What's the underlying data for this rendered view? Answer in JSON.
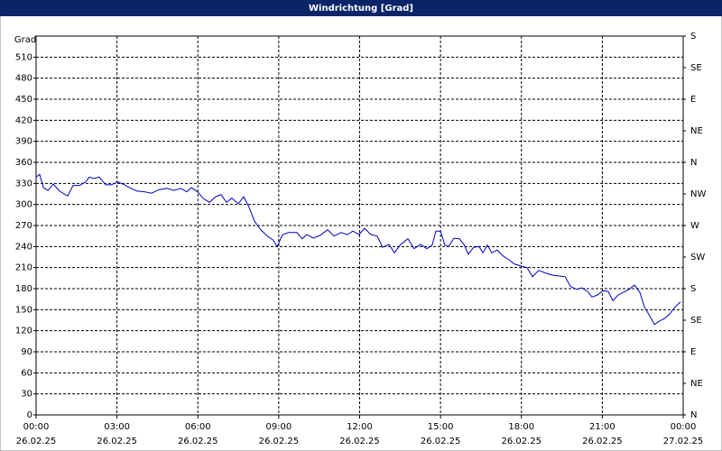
{
  "chart_data": {
    "type": "line",
    "title": "Windrichtung [Grad]",
    "y_label": "Grad",
    "xlim": [
      0,
      24
    ],
    "xticks": [
      {
        "value": 0,
        "label": "00:00"
      },
      {
        "value": 3,
        "label": "03:00"
      },
      {
        "value": 6,
        "label": "06:00"
      },
      {
        "value": 9,
        "label": "09:00"
      },
      {
        "value": 12,
        "label": "12:00"
      },
      {
        "value": 15,
        "label": "15:00"
      },
      {
        "value": 18,
        "label": "18:00"
      },
      {
        "value": 21,
        "label": "21:00"
      },
      {
        "value": 24,
        "label": "00:00"
      }
    ],
    "xtick_dates": [
      "26.02.25",
      "26.02.25",
      "26.02.25",
      "26.02.25",
      "26.02.25",
      "26.02.25",
      "26.02.25",
      "26.02.25",
      "27.02.25"
    ],
    "ylim": [
      0,
      540
    ],
    "yticks": [
      0,
      30,
      60,
      90,
      120,
      150,
      180,
      210,
      240,
      270,
      300,
      330,
      360,
      390,
      420,
      450,
      480,
      510
    ],
    "y2lim": [
      0,
      540
    ],
    "y2ticks": [
      {
        "value": 0,
        "label": "N"
      },
      {
        "value": 45,
        "label": "NE"
      },
      {
        "value": 90,
        "label": "E"
      },
      {
        "value": 135,
        "label": "SE"
      },
      {
        "value": 180,
        "label": "S"
      },
      {
        "value": 225,
        "label": "SW"
      },
      {
        "value": 270,
        "label": "W"
      },
      {
        "value": 315,
        "label": "NW"
      },
      {
        "value": 360,
        "label": "N"
      },
      {
        "value": 405,
        "label": "NE"
      },
      {
        "value": 450,
        "label": "E"
      },
      {
        "value": 495,
        "label": "SE"
      },
      {
        "value": 540,
        "label": "S"
      }
    ],
    "grid": true,
    "x": [
      0,
      0.13,
      0.27,
      0.44,
      0.64,
      0.87,
      1.17,
      1.37,
      1.61,
      1.84,
      1.97,
      2.14,
      2.34,
      2.58,
      2.78,
      3.05,
      3.28,
      3.51,
      3.75,
      4.02,
      4.28,
      4.55,
      4.85,
      5.12,
      5.36,
      5.59,
      5.76,
      5.99,
      6.19,
      6.43,
      6.66,
      6.86,
      7.06,
      7.26,
      7.5,
      7.7,
      7.9,
      8.1,
      8.33,
      8.57,
      8.8,
      8.94,
      9.14,
      9.37,
      9.67,
      9.87,
      10.04,
      10.28,
      10.54,
      10.81,
      11.05,
      11.31,
      11.55,
      11.75,
      11.98,
      12.18,
      12.42,
      12.65,
      12.85,
      13.09,
      13.29,
      13.52,
      13.79,
      14.02,
      14.26,
      14.49,
      14.69,
      14.83,
      15.0,
      15.16,
      15.3,
      15.5,
      15.7,
      15.87,
      16.03,
      16.23,
      16.43,
      16.57,
      16.74,
      16.9,
      17.1,
      17.34,
      17.54,
      17.74,
      18.01,
      18.21,
      18.41,
      18.64,
      18.91,
      19.18,
      19.41,
      19.62,
      19.82,
      20.05,
      20.25,
      20.45,
      20.62,
      20.82,
      21.02,
      21.22,
      21.39,
      21.59,
      21.79,
      21.99,
      22.19,
      22.39,
      22.56,
      22.76,
      22.93,
      23.13,
      23.33,
      23.5,
      23.7,
      23.9
    ],
    "series": [
      {
        "color": "#0000c0",
        "values": [
          339,
          343,
          324,
          320,
          329,
          319,
          312,
          327,
          327,
          332,
          339,
          337,
          339,
          328,
          328,
          332,
          328,
          323,
          319,
          318,
          316,
          321,
          323,
          320,
          323,
          318,
          324,
          318,
          309,
          303,
          311,
          314,
          303,
          309,
          301,
          311,
          296,
          276,
          264,
          255,
          249,
          240,
          257,
          260,
          260,
          251,
          257,
          252,
          256,
          264,
          255,
          260,
          257,
          262,
          257,
          266,
          257,
          255,
          239,
          243,
          231,
          243,
          251,
          237,
          243,
          237,
          242,
          262,
          262,
          242,
          240,
          252,
          251,
          243,
          229,
          239,
          240,
          231,
          242,
          231,
          235,
          226,
          221,
          215,
          212,
          210,
          197,
          206,
          202,
          199,
          198,
          197,
          183,
          179,
          181,
          176,
          168,
          171,
          177,
          176,
          163,
          171,
          175,
          179,
          185,
          175,
          154,
          141,
          129,
          134,
          138,
          144,
          154,
          161
        ]
      }
    ]
  }
}
